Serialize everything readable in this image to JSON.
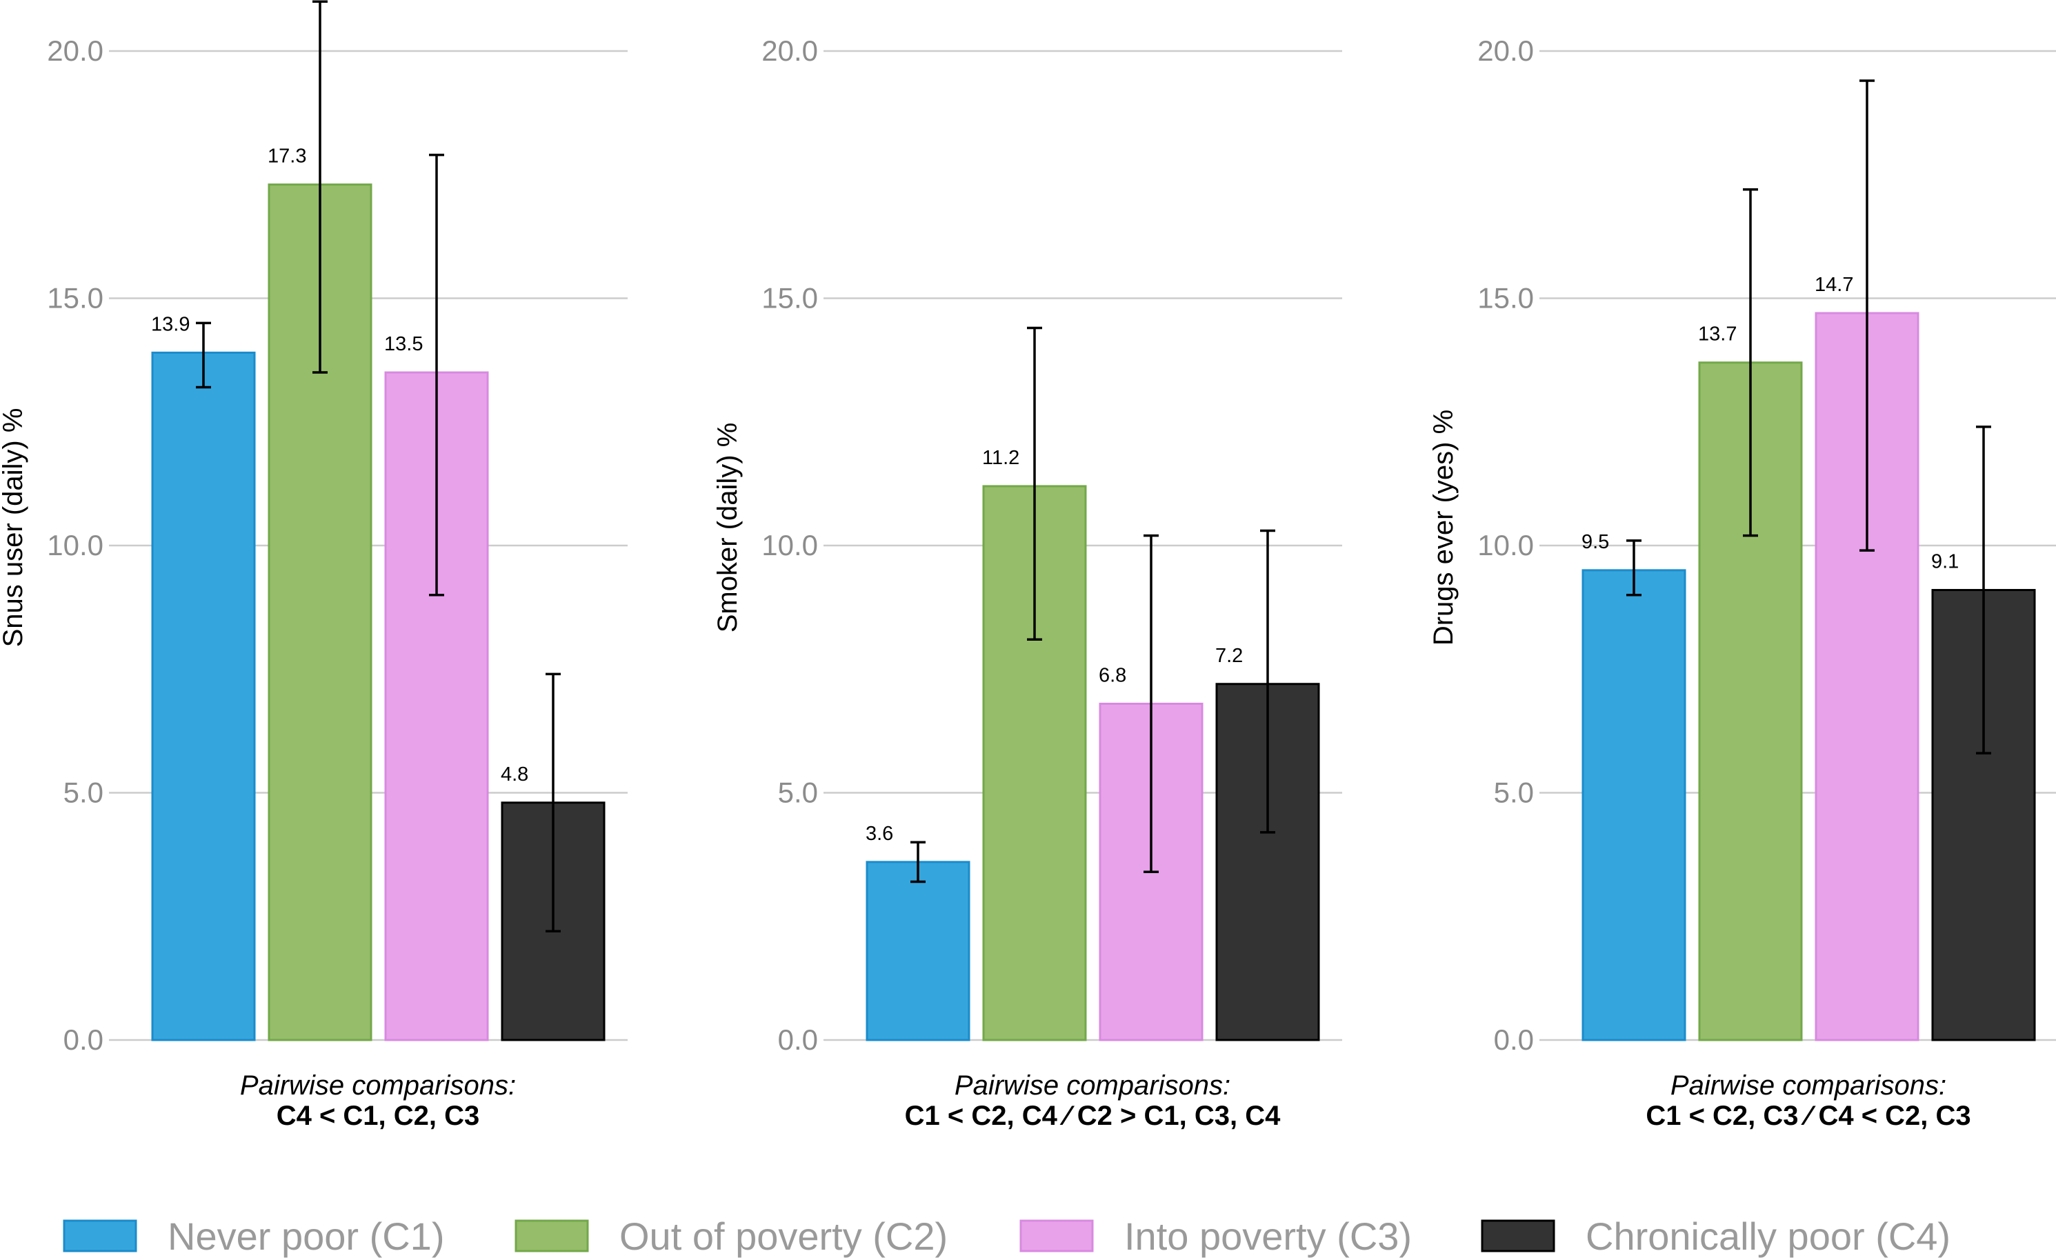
{
  "chart_data": [
    {
      "type": "bar",
      "ylabel": "Snus user (daily) %",
      "categories": [
        "Never poor (C1)",
        "Out of poverty (C2)",
        "Into poverty (C3)",
        "Chronically poor (C4)"
      ],
      "values": [
        13.9,
        17.3,
        13.5,
        4.8
      ],
      "value_labels": [
        "13.9",
        "17.3",
        "13.5",
        "4.8"
      ],
      "error_low": [
        13.2,
        13.5,
        9.0,
        2.2
      ],
      "error_high": [
        14.5,
        21.0,
        17.9,
        7.4
      ],
      "ylim": [
        0,
        21
      ],
      "yticks": [
        "0.0",
        "5.0",
        "10.0",
        "15.0",
        "20.0"
      ],
      "comparison_title": "Pairwise comparisons:",
      "comparison_text": "C4 < C1, C2, C3"
    },
    {
      "type": "bar",
      "ylabel": "Smoker (daily) %",
      "categories": [
        "Never poor (C1)",
        "Out of poverty (C2)",
        "Into poverty (C3)",
        "Chronically poor (C4)"
      ],
      "values": [
        3.6,
        11.2,
        6.8,
        7.2
      ],
      "value_labels": [
        "3.6",
        "11.2",
        "6.8",
        "7.2"
      ],
      "error_low": [
        3.2,
        8.1,
        3.4,
        4.2
      ],
      "error_high": [
        4.0,
        14.4,
        10.2,
        10.3
      ],
      "ylim": [
        0,
        21
      ],
      "yticks": [
        "0.0",
        "5.0",
        "10.0",
        "15.0",
        "20.0"
      ],
      "comparison_title": "Pairwise comparisons:",
      "comparison_text": "C1 < C2, C4 ⁄ C2 > C1, C3, C4"
    },
    {
      "type": "bar",
      "ylabel": "Drugs ever (yes) %",
      "categories": [
        "Never poor (C1)",
        "Out of poverty (C2)",
        "Into poverty (C3)",
        "Chronically poor (C4)"
      ],
      "values": [
        9.5,
        13.7,
        14.7,
        9.1
      ],
      "value_labels": [
        "9.5",
        "13.7",
        "14.7",
        "9.1"
      ],
      "error_low": [
        9.0,
        10.2,
        9.9,
        5.8
      ],
      "error_high": [
        10.1,
        17.2,
        19.4,
        12.4
      ],
      "ylim": [
        0,
        21
      ],
      "yticks": [
        "0.0",
        "5.0",
        "10.0",
        "15.0",
        "20.0"
      ],
      "comparison_title": "Pairwise comparisons:",
      "comparison_text": "C1 < C2, C3 ⁄ C4 < C2, C3"
    }
  ],
  "legend": {
    "items": [
      {
        "label": "Never poor (C1)",
        "color": "#35a5dd",
        "stroke": "#1a8ccc"
      },
      {
        "label": "Out of poverty (C2)",
        "color": "#96bd6a",
        "stroke": "#73a84a"
      },
      {
        "label": "Into poverty (C3)",
        "color": "#e8a2ea",
        "stroke": "#d88ae0"
      },
      {
        "label": "Chronically poor (C4)",
        "color": "#333333",
        "stroke": "#000000"
      }
    ]
  }
}
